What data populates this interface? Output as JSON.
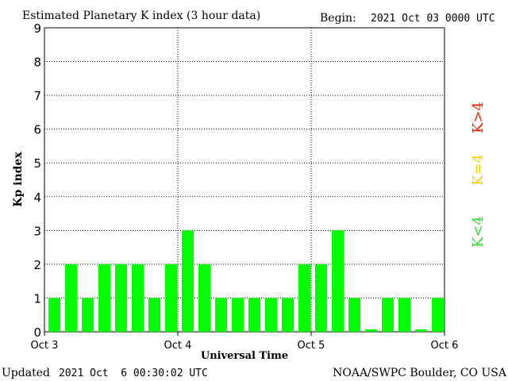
{
  "header": {
    "title": "Estimated Planetary K index (3 hour data)",
    "begin_label": "Begin:",
    "begin_value": "2021 Oct 03 0000 UTC"
  },
  "footer": {
    "updated_label": "Updated",
    "updated_value": "2021 Oct  6 00:30:02 UTC",
    "source": "NOAA/SWPC Boulder, CO USA"
  },
  "legend": {
    "low": "K<4",
    "mid": "K=4",
    "high": "K>4"
  },
  "colors": {
    "bar": "#00ff00",
    "low": "#33dd33",
    "mid": "#ffcc00",
    "high": "#ee2200",
    "grid": "#000000"
  },
  "chart_data": {
    "type": "bar",
    "title": "Estimated Planetary K index (3 hour data)",
    "xlabel": "Universal Time",
    "ylabel": "Kp index",
    "ylim": [
      0,
      9
    ],
    "yticks": [
      0,
      1,
      2,
      3,
      4,
      5,
      6,
      7,
      8,
      9
    ],
    "xticks": [
      "Oct 3",
      "Oct 4",
      "Oct 5",
      "Oct 6"
    ],
    "grid": true,
    "values": [
      1,
      2,
      1,
      2,
      2,
      2,
      1,
      2,
      3,
      2,
      1,
      1,
      1,
      1,
      1,
      2,
      2,
      3,
      1,
      0,
      1,
      1,
      0,
      1
    ]
  }
}
